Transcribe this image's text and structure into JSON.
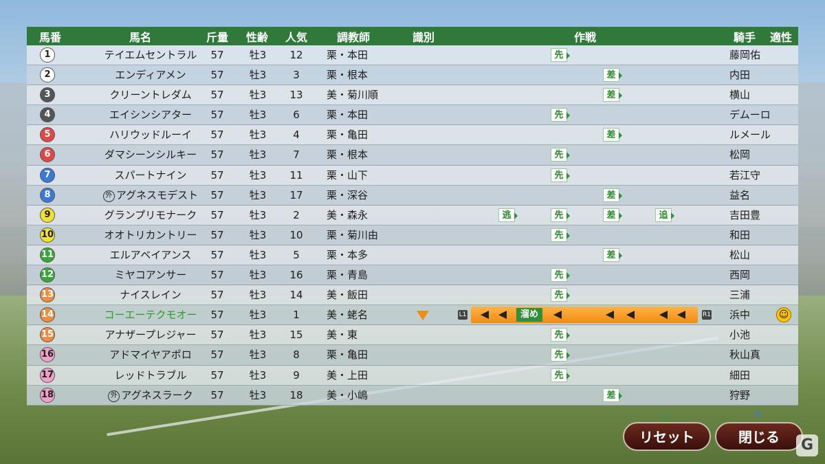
{
  "headers": {
    "num": "馬番",
    "name": "馬名",
    "weight": "斤量",
    "sexage": "性齢",
    "pop": "人気",
    "trainer": "調教師",
    "identify": "識別",
    "tactics": "作戦",
    "jockey": "騎手",
    "aptitude": "適性"
  },
  "foreign_mark": "外",
  "strategy_tags": {
    "nige": "逃",
    "senko": "先",
    "sashi": "差",
    "oikomi": "追"
  },
  "rows": [
    {
      "num": "1",
      "num_color": "#ffffff",
      "name": "テイエムセントラル",
      "weight": "57",
      "sexage": "牡3",
      "pop": "12",
      "trainer": "栗・本田",
      "jockey": "藤岡佑",
      "strategy": [
        "先"
      ]
    },
    {
      "num": "2",
      "num_color": "#ffffff",
      "name": "エンディアメン",
      "weight": "57",
      "sexage": "牡3",
      "pop": "3",
      "trainer": "栗・根本",
      "jockey": "内田",
      "strategy": [
        "差"
      ]
    },
    {
      "num": "3",
      "num_color": "#555555",
      "name": "クリーントレダム",
      "weight": "57",
      "sexage": "牡3",
      "pop": "13",
      "trainer": "美・菊川順",
      "jockey": "横山",
      "strategy": [
        "差"
      ]
    },
    {
      "num": "4",
      "num_color": "#555555",
      "name": "エイシンシアター",
      "weight": "57",
      "sexage": "牡3",
      "pop": "6",
      "trainer": "栗・本田",
      "jockey": "デムーロ",
      "strategy": [
        "先"
      ]
    },
    {
      "num": "5",
      "num_color": "#e04848",
      "name": "ハリウッドルーイ",
      "weight": "57",
      "sexage": "牡3",
      "pop": "4",
      "trainer": "栗・亀田",
      "jockey": "ルメール",
      "strategy": [
        "差"
      ]
    },
    {
      "num": "6",
      "num_color": "#e04848",
      "name": "ダマシーンシルキー",
      "weight": "57",
      "sexage": "牡3",
      "pop": "7",
      "trainer": "栗・根本",
      "jockey": "松岡",
      "strategy": [
        "先"
      ]
    },
    {
      "num": "7",
      "num_color": "#3c78d8",
      "name": "スパートナイン",
      "weight": "57",
      "sexage": "牡3",
      "pop": "11",
      "trainer": "栗・山下",
      "jockey": "若江守",
      "strategy": [
        "先"
      ]
    },
    {
      "num": "8",
      "num_color": "#3c78d8",
      "name": "アグネスモデスト",
      "foreign": true,
      "weight": "57",
      "sexage": "牡3",
      "pop": "17",
      "trainer": "栗・深谷",
      "jockey": "益名",
      "strategy": [
        "差"
      ]
    },
    {
      "num": "9",
      "num_color": "#f0e030",
      "name": "グランプリモナーク",
      "weight": "57",
      "sexage": "牡3",
      "pop": "2",
      "trainer": "美・森永",
      "jockey": "吉田豊",
      "strategy": [
        "逃",
        "先",
        "差",
        "追"
      ]
    },
    {
      "num": "10",
      "num_color": "#f0e030",
      "name": "オオトリカントリー",
      "weight": "57",
      "sexage": "牡3",
      "pop": "10",
      "trainer": "栗・菊川由",
      "jockey": "和田",
      "strategy": [
        "先"
      ]
    },
    {
      "num": "11",
      "num_color": "#38a838",
      "name": "エルアベイアンス",
      "weight": "57",
      "sexage": "牡3",
      "pop": "5",
      "trainer": "栗・本多",
      "jockey": "松山",
      "strategy": [
        "差"
      ]
    },
    {
      "num": "12",
      "num_color": "#38a838",
      "name": "ミヤコアンサー",
      "weight": "57",
      "sexage": "牡3",
      "pop": "16",
      "trainer": "栗・青島",
      "jockey": "西岡",
      "strategy": [
        "先"
      ]
    },
    {
      "num": "13",
      "num_color": "#f08c40",
      "name": "ナイスレイン",
      "weight": "57",
      "sexage": "牡3",
      "pop": "14",
      "trainer": "美・飯田",
      "jockey": "三浦",
      "strategy": [
        "先"
      ]
    },
    {
      "num": "14",
      "num_color": "#f08c40",
      "name": "コーエーテクモオー",
      "selected": true,
      "weight": "57",
      "sexage": "牡3",
      "pop": "1",
      "trainer": "美・蛯名",
      "jockey": "浜中",
      "strategy": [
        "溜め"
      ]
    },
    {
      "num": "15",
      "num_color": "#f08c40",
      "name": "アナザープレジャー",
      "weight": "57",
      "sexage": "牡3",
      "pop": "15",
      "trainer": "美・東",
      "jockey": "小池",
      "strategy": [
        "先"
      ]
    },
    {
      "num": "16",
      "num_color": "#f0a0c8",
      "name": "アドマイヤアポロ",
      "weight": "57",
      "sexage": "牡3",
      "pop": "8",
      "trainer": "栗・亀田",
      "jockey": "秋山真",
      "strategy": [
        "先"
      ]
    },
    {
      "num": "17",
      "num_color": "#f0a0c8",
      "name": "レッドトラブル",
      "weight": "57",
      "sexage": "牡3",
      "pop": "9",
      "trainer": "美・上田",
      "jockey": "細田",
      "strategy": [
        "先"
      ]
    },
    {
      "num": "18",
      "num_color": "#f0a0c8",
      "name": "アグネスラーク",
      "foreign": true,
      "weight": "57",
      "sexage": "牡3",
      "pop": "18",
      "trainer": "美・小嶋",
      "jockey": "狩野",
      "strategy": [
        "差"
      ]
    }
  ],
  "selected_bar": {
    "left_button": "L1",
    "right_button": "R1",
    "label": "溜め"
  },
  "buttons": {
    "reset": "リセット",
    "reset_hint": "△",
    "close": "閉じる",
    "close_hint": "✕"
  },
  "colors": {
    "header_green": "#2f7a3b",
    "selected_name": "#2a9a2a",
    "bar_orange": "#f5a030"
  }
}
